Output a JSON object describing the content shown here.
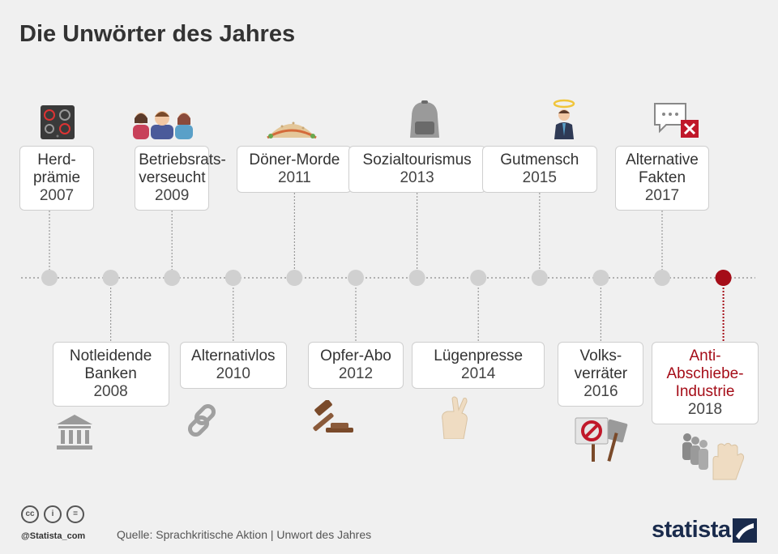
{
  "title": "Die Unwörter des Jahres",
  "source": "Quelle: Sprachkritische Aktion | Unwort des Jahres",
  "handle": "@Statista_com",
  "brand": "statista",
  "colors": {
    "accent": "#a50d18",
    "dot": "#d0d0d0",
    "line": "#9a9a9a"
  },
  "chart_data": {
    "type": "timeline",
    "entries": [
      {
        "word": "Herd-\nprämie",
        "year": "2007",
        "position": "top",
        "icon": "stove-icon"
      },
      {
        "word": "Notleidende\nBanken",
        "year": "2008",
        "position": "bottom",
        "icon": "bank-icon"
      },
      {
        "word": "Betriebsrats-\nverseucht",
        "year": "2009",
        "position": "top",
        "icon": "workers-icon"
      },
      {
        "word": "Alternativlos",
        "year": "2010",
        "position": "bottom",
        "icon": "chain-icon"
      },
      {
        "word": "Döner-Morde",
        "year": "2011",
        "position": "top",
        "icon": "doner-icon"
      },
      {
        "word": "Opfer-Abo",
        "year": "2012",
        "position": "bottom",
        "icon": "gavel-icon"
      },
      {
        "word": "Sozialtourismus",
        "year": "2013",
        "position": "top",
        "icon": "backpack-icon"
      },
      {
        "word": "Lügenpresse",
        "year": "2014",
        "position": "bottom",
        "icon": "crossed-fingers-icon"
      },
      {
        "word": "Gutmensch",
        "year": "2015",
        "position": "top",
        "icon": "halo-person-icon"
      },
      {
        "word": "Volks-\nverräter",
        "year": "2016",
        "position": "bottom",
        "icon": "protest-signs-icon"
      },
      {
        "word": "Alternative\nFakten",
        "year": "2017",
        "position": "top",
        "icon": "speech-bubble-x-icon"
      },
      {
        "word": "Anti-\nAbschiebe-\nIndustrie",
        "year": "2018",
        "position": "bottom",
        "icon": "refugees-stop-icon",
        "highlight": true
      }
    ]
  }
}
